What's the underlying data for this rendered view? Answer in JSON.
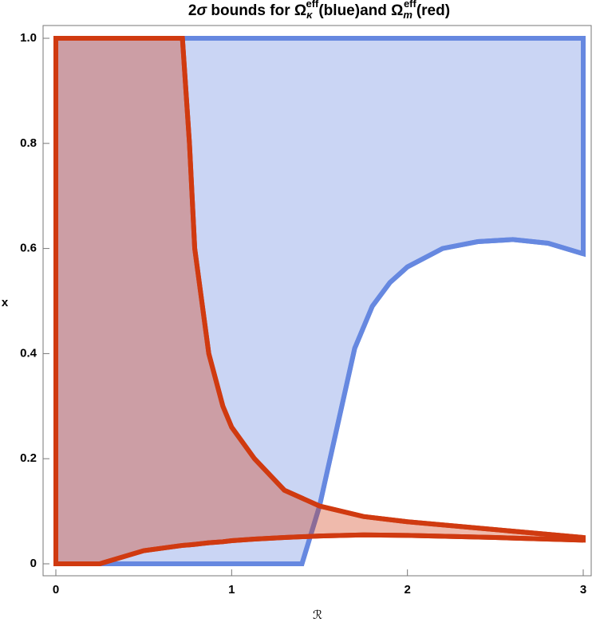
{
  "chart_data": {
    "type": "area",
    "title": [
      "2",
      "σ",
      " bounds for ",
      "Ω",
      "κ",
      "eff",
      "(blue)and ",
      "Ω",
      "m",
      "eff",
      "(red)"
    ],
    "x_label": "ℛ",
    "y_label": "x",
    "xlim": [
      0,
      3
    ],
    "ylim": [
      0,
      1
    ],
    "xticks": [
      0,
      1,
      2,
      3
    ],
    "yticks": [
      0,
      0.2,
      0.4,
      0.6,
      0.8,
      {
        "value": 1,
        "label": "1.0"
      }
    ],
    "series": [
      {
        "color": "#6688e0",
        "x": [
          0,
          0.25,
          0.5,
          0.75,
          1.0,
          1.25,
          1.4,
          1.5,
          1.6,
          1.7,
          1.8,
          1.9,
          2.0,
          2.2,
          2.4,
          2.6,
          2.8,
          3.0
        ],
        "upper": [
          1,
          1,
          1,
          1,
          1,
          1,
          1,
          1,
          1,
          1,
          1,
          1,
          1,
          1,
          1,
          1,
          1,
          1
        ],
        "lower": [
          0,
          0,
          0,
          0,
          0,
          0,
          0,
          0.11,
          0.26,
          0.41,
          0.49,
          0.535,
          0.565,
          0.6,
          0.613,
          0.617,
          0.61,
          0.59
        ]
      },
      {
        "color": "#d03a10",
        "x": [
          0,
          0.25,
          0.5,
          0.72,
          0.76,
          0.79,
          0.87,
          0.95,
          1.0,
          1.13,
          1.3,
          1.5,
          1.75,
          2.0,
          2.5,
          3.0
        ],
        "upper": [
          1,
          1,
          1,
          1,
          0.8,
          0.6,
          0.4,
          0.3,
          0.26,
          0.2,
          0.14,
          0.11,
          0.09,
          0.08,
          0.065,
          0.05
        ],
        "lower": [
          0,
          0,
          0.025,
          0.035,
          0.036,
          0.037,
          0.04,
          0.042,
          0.044,
          0.047,
          0.05,
          0.053,
          0.055,
          0.054,
          0.05,
          0.045
        ]
      }
    ]
  }
}
